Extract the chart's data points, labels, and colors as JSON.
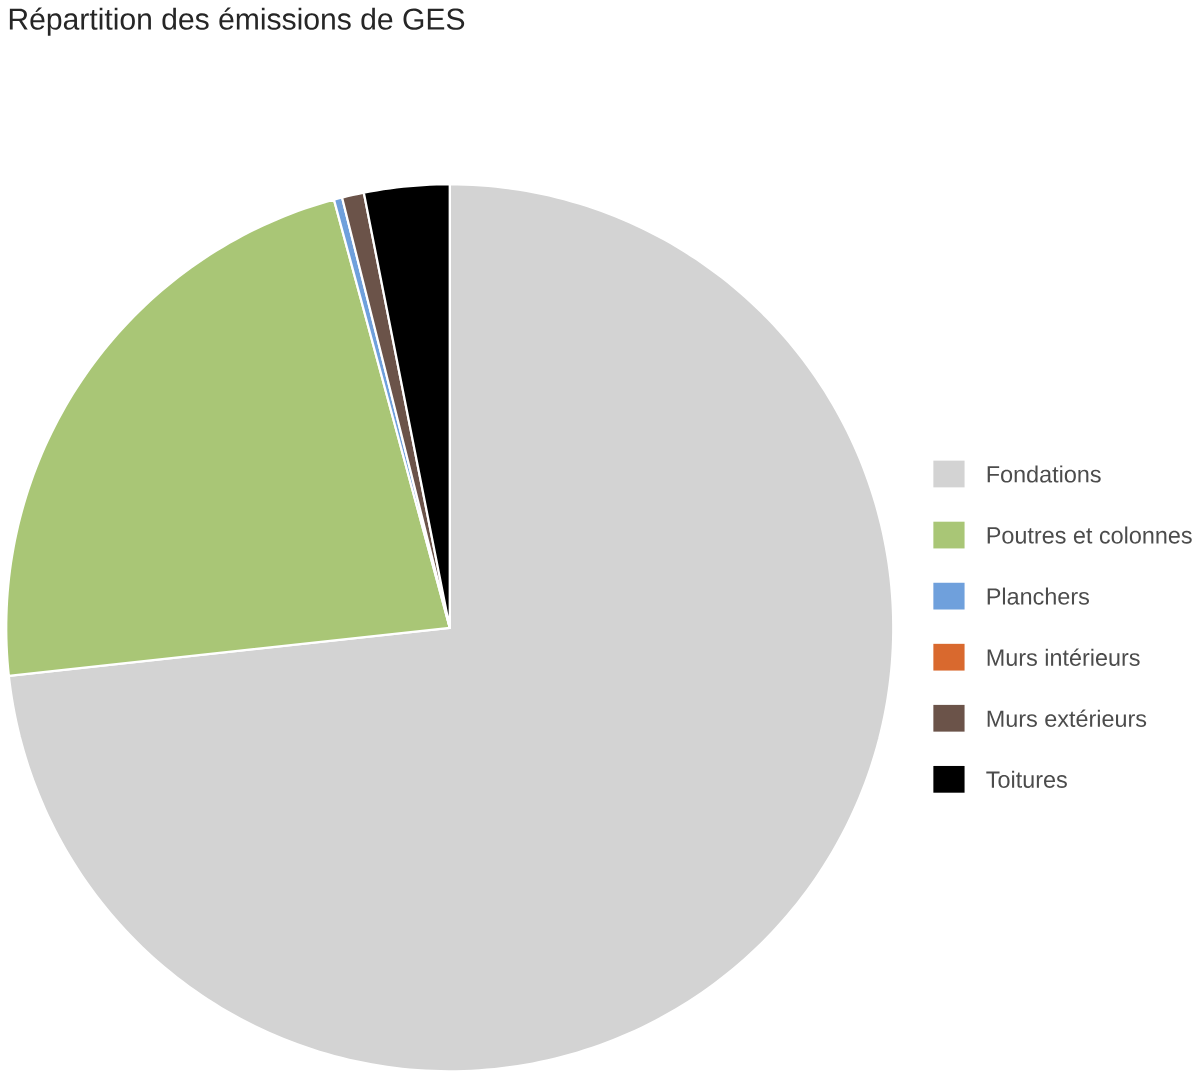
{
  "chart_data": {
    "type": "pie",
    "title": "Répartition des émissions de GES",
    "categories": [
      "Fondations",
      "Poutres et colonnes",
      "Planchers",
      "Murs intérieurs",
      "Murs extérieurs",
      "Toitures"
    ],
    "values": [
      73.2,
      22.5,
      0.3,
      null,
      0.8,
      3.1
    ],
    "colors": [
      "#d3d3d3",
      "#a9c676",
      "#6fa0dc",
      "#d9692e",
      "#6b5349",
      "#000000"
    ],
    "legend": "right"
  }
}
